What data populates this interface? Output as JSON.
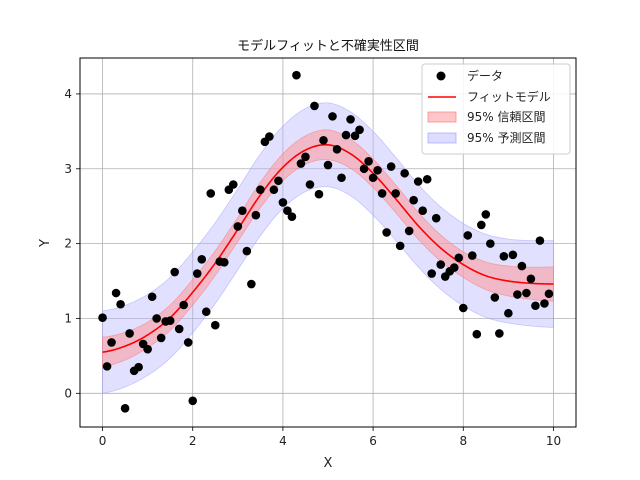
{
  "chart_data": {
    "type": "scatter",
    "title": "モデルフィットと不確実性区間",
    "xlabel": "X",
    "ylabel": "Y",
    "xlim": [
      -0.5,
      10.5
    ],
    "ylim": [
      -0.45,
      4.48
    ],
    "xticks": [
      0,
      2,
      4,
      6,
      8,
      10
    ],
    "yticks": [
      0,
      1,
      2,
      3,
      4
    ],
    "grid": true,
    "legend_position": "top-right",
    "legend": {
      "data": "データ",
      "fit": "フィットモデル",
      "ci": "95% 信頼区間",
      "pi": "95% 予測区間"
    },
    "colors": {
      "data": "#000000",
      "fit": "#ff0000",
      "ci_fill": "#ff9999",
      "ci_edge": "#ff6b6b",
      "pi_fill": "#b3b3ff",
      "pi_edge": "#9999ff"
    },
    "series": [
      {
        "name": "データ",
        "points": [
          [
            0.0,
            1.01
          ],
          [
            0.1,
            0.36
          ],
          [
            0.2,
            0.68
          ],
          [
            0.3,
            1.34
          ],
          [
            0.4,
            1.19
          ],
          [
            0.5,
            -0.2
          ],
          [
            0.6,
            0.8
          ],
          [
            0.7,
            0.3
          ],
          [
            0.8,
            0.35
          ],
          [
            0.9,
            0.66
          ],
          [
            1.0,
            0.59
          ],
          [
            1.1,
            1.29
          ],
          [
            1.2,
            1.0
          ],
          [
            1.3,
            0.74
          ],
          [
            1.4,
            0.96
          ],
          [
            1.5,
            0.97
          ],
          [
            1.6,
            1.62
          ],
          [
            1.7,
            0.86
          ],
          [
            1.8,
            1.18
          ],
          [
            1.9,
            0.68
          ],
          [
            2.0,
            -0.1
          ],
          [
            2.1,
            1.6
          ],
          [
            2.2,
            1.79
          ],
          [
            2.3,
            1.09
          ],
          [
            2.4,
            2.67
          ],
          [
            2.5,
            0.91
          ],
          [
            2.6,
            1.76
          ],
          [
            2.7,
            1.75
          ],
          [
            2.8,
            2.72
          ],
          [
            2.9,
            2.79
          ],
          [
            3.0,
            2.23
          ],
          [
            3.1,
            2.44
          ],
          [
            3.2,
            1.9
          ],
          [
            3.3,
            1.46
          ],
          [
            3.4,
            2.38
          ],
          [
            3.5,
            2.72
          ],
          [
            3.6,
            3.36
          ],
          [
            3.7,
            3.43
          ],
          [
            3.8,
            2.72
          ],
          [
            3.9,
            2.84
          ],
          [
            4.0,
            2.55
          ],
          [
            4.1,
            2.44
          ],
          [
            4.2,
            2.36
          ],
          [
            4.3,
            4.25
          ],
          [
            4.4,
            3.07
          ],
          [
            4.5,
            3.16
          ],
          [
            4.6,
            2.79
          ],
          [
            4.7,
            3.84
          ],
          [
            4.8,
            2.66
          ],
          [
            4.9,
            3.38
          ],
          [
            5.0,
            3.05
          ],
          [
            5.1,
            3.7
          ],
          [
            5.2,
            3.26
          ],
          [
            5.3,
            2.88
          ],
          [
            5.4,
            3.45
          ],
          [
            5.5,
            3.66
          ],
          [
            5.6,
            3.44
          ],
          [
            5.7,
            3.52
          ],
          [
            5.8,
            3.0
          ],
          [
            5.9,
            3.1
          ],
          [
            6.0,
            2.88
          ],
          [
            6.1,
            2.98
          ],
          [
            6.2,
            2.67
          ],
          [
            6.3,
            2.15
          ],
          [
            6.4,
            3.03
          ],
          [
            6.5,
            2.67
          ],
          [
            6.6,
            1.97
          ],
          [
            6.7,
            2.94
          ],
          [
            6.8,
            2.17
          ],
          [
            6.9,
            2.58
          ],
          [
            7.0,
            2.83
          ],
          [
            7.1,
            2.44
          ],
          [
            7.2,
            2.86
          ],
          [
            7.3,
            1.6
          ],
          [
            7.4,
            2.34
          ],
          [
            7.5,
            1.72
          ],
          [
            7.6,
            1.56
          ],
          [
            7.7,
            1.63
          ],
          [
            7.8,
            1.68
          ],
          [
            7.9,
            1.81
          ],
          [
            8.0,
            1.14
          ],
          [
            8.1,
            2.11
          ],
          [
            8.2,
            1.84
          ],
          [
            8.3,
            0.79
          ],
          [
            8.4,
            2.25
          ],
          [
            8.5,
            2.39
          ],
          [
            8.6,
            2.0
          ],
          [
            8.7,
            1.28
          ],
          [
            8.8,
            0.8
          ],
          [
            8.9,
            1.83
          ],
          [
            9.0,
            1.07
          ],
          [
            9.1,
            1.85
          ],
          [
            9.2,
            1.32
          ],
          [
            9.3,
            1.7
          ],
          [
            9.4,
            1.34
          ],
          [
            9.5,
            1.53
          ],
          [
            9.6,
            1.17
          ],
          [
            9.7,
            2.04
          ],
          [
            9.8,
            1.2
          ],
          [
            9.9,
            1.33
          ]
        ]
      },
      {
        "name": "フィットモデル",
        "points": [
          [
            0.0,
            0.55
          ],
          [
            0.5,
            0.63
          ],
          [
            1.0,
            0.78
          ],
          [
            1.5,
            1.01
          ],
          [
            2.0,
            1.35
          ],
          [
            2.5,
            1.74
          ],
          [
            3.0,
            2.19
          ],
          [
            3.5,
            2.65
          ],
          [
            4.0,
            3.02
          ],
          [
            4.5,
            3.25
          ],
          [
            5.0,
            3.32
          ],
          [
            5.5,
            3.2
          ],
          [
            6.0,
            2.94
          ],
          [
            6.5,
            2.6
          ],
          [
            7.0,
            2.24
          ],
          [
            7.5,
            1.94
          ],
          [
            8.0,
            1.72
          ],
          [
            8.5,
            1.57
          ],
          [
            9.0,
            1.5
          ],
          [
            9.5,
            1.47
          ],
          [
            10.0,
            1.46
          ]
        ]
      }
    ],
    "ci_halfwidth": [
      [
        0.0,
        0.2
      ],
      [
        1.0,
        0.17
      ],
      [
        2.0,
        0.17
      ],
      [
        3.0,
        0.16
      ],
      [
        4.0,
        0.18
      ],
      [
        5.0,
        0.2
      ],
      [
        6.0,
        0.19
      ],
      [
        7.0,
        0.18
      ],
      [
        8.0,
        0.17
      ],
      [
        9.0,
        0.2
      ],
      [
        10.0,
        0.23
      ]
    ],
    "pi_halfwidth": [
      [
        0.0,
        0.55
      ],
      [
        1.0,
        0.54
      ],
      [
        2.0,
        0.54
      ],
      [
        3.0,
        0.54
      ],
      [
        4.0,
        0.55
      ],
      [
        5.0,
        0.56
      ],
      [
        6.0,
        0.56
      ],
      [
        7.0,
        0.55
      ],
      [
        8.0,
        0.55
      ],
      [
        9.0,
        0.56
      ],
      [
        10.0,
        0.58
      ]
    ]
  }
}
